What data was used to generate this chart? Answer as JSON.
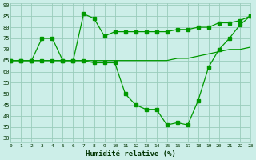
{
  "xlabel": "Humidité relative (%)",
  "bg_color": "#cceee8",
  "grid_color": "#99ccbb",
  "line_color": "#009900",
  "xlim": [
    0,
    23
  ],
  "ylim": [
    28,
    91
  ],
  "yticks": [
    30,
    35,
    40,
    45,
    50,
    55,
    60,
    65,
    70,
    75,
    80,
    85,
    90
  ],
  "xticks": [
    0,
    1,
    2,
    3,
    4,
    5,
    6,
    7,
    8,
    9,
    10,
    11,
    12,
    13,
    14,
    15,
    16,
    17,
    18,
    19,
    20,
    21,
    22,
    23
  ],
  "line1_x": [
    0,
    1,
    2,
    3,
    4,
    5,
    6,
    7,
    8,
    9,
    10,
    11,
    12,
    13,
    14,
    15,
    16,
    17,
    18,
    19,
    20,
    21,
    22,
    23
  ],
  "line1_y": [
    65,
    65,
    65,
    75,
    75,
    65,
    65,
    86,
    84,
    76,
    78,
    78,
    78,
    78,
    78,
    78,
    79,
    79,
    80,
    80,
    82,
    82,
    83,
    85
  ],
  "line2_x": [
    0,
    1,
    2,
    3,
    4,
    5,
    6,
    7,
    8,
    9,
    10,
    11,
    12,
    13,
    14,
    15,
    16,
    17,
    18,
    19,
    20,
    21,
    22,
    23
  ],
  "line2_y": [
    65,
    65,
    65,
    65,
    65,
    65,
    65,
    65,
    65,
    65,
    65,
    65,
    65,
    65,
    65,
    65,
    66,
    66,
    67,
    68,
    69,
    70,
    70,
    71
  ],
  "line3_x": [
    0,
    1,
    2,
    3,
    4,
    5,
    6,
    7,
    8,
    9,
    10,
    11,
    12,
    13,
    14,
    15,
    16,
    17,
    18,
    19,
    20,
    21,
    22,
    23
  ],
  "line3_y": [
    65,
    65,
    65,
    65,
    65,
    65,
    65,
    65,
    64,
    64,
    64,
    50,
    45,
    43,
    43,
    36,
    37,
    36,
    47,
    62,
    70,
    75,
    81,
    85
  ]
}
